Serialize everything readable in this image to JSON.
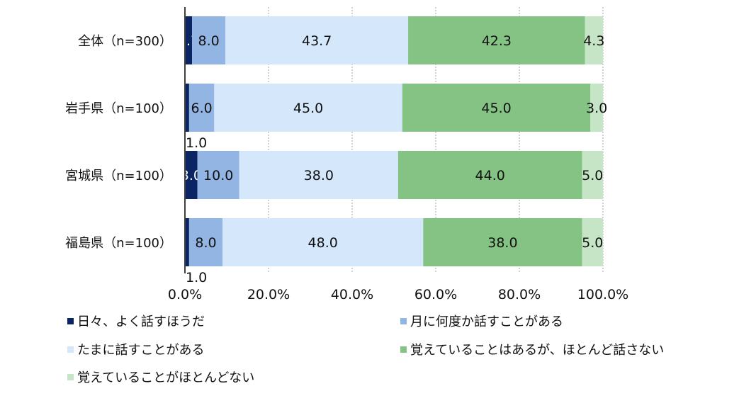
{
  "chart_data": {
    "type": "bar",
    "orientation": "horizontal",
    "stacked": true,
    "categories": [
      "全体（n=300）",
      "岩手県（n=100）",
      "宮城県（n=100）",
      "福島県（n=100）"
    ],
    "series": [
      {
        "name": "日々、よく話すほうだ",
        "color": "#0b2463",
        "values": [
          1.7,
          1.0,
          3.0,
          1.0
        ]
      },
      {
        "name": "月に何度か話すことがある",
        "color": "#93b5e3",
        "values": [
          8.0,
          6.0,
          10.0,
          8.0
        ]
      },
      {
        "name": "たまに話すことがある",
        "color": "#d5e7fb",
        "values": [
          43.7,
          45.0,
          38.0,
          48.0
        ]
      },
      {
        "name": "覚えていることはあるが、ほとんど話さない",
        "color": "#84c384",
        "values": [
          42.3,
          45.0,
          44.0,
          38.0
        ]
      },
      {
        "name": "覚えていることがほとんどない",
        "color": "#c6e4c6",
        "values": [
          4.3,
          3.0,
          5.0,
          5.0
        ]
      }
    ],
    "xlim": [
      0,
      100
    ],
    "xticks": [
      "0.0%",
      "20.0%",
      "40.0%",
      "60.0%",
      "80.0%",
      "100.0%"
    ],
    "grid": true,
    "legend_position": "bottom"
  }
}
